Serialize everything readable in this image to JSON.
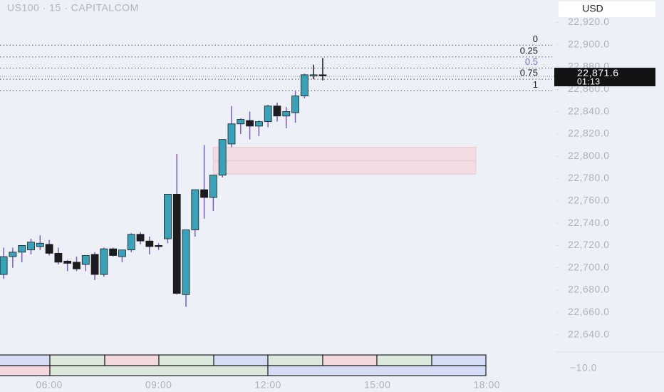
{
  "chart_data": {
    "type": "candlestick",
    "title": "US100 · 15 · CAPITALCOM",
    "currency": "USD",
    "x": [
      4.75,
      5,
      5.25,
      5.5,
      5.75,
      6,
      6.25,
      6.5,
      6.75,
      7,
      7.25,
      7.5,
      7.75,
      8,
      8.25,
      8.5,
      8.75,
      9,
      9.25,
      9.5,
      9.75,
      10,
      10.25,
      10.5,
      10.75,
      11,
      11.25,
      11.5,
      11.75,
      12,
      12.25,
      12.5,
      12.75,
      13,
      13.25,
      13.5
    ],
    "open": [
      22694,
      22710,
      22714,
      22716,
      22719,
      22721,
      22713,
      22706,
      22705,
      22703,
      22712,
      22694,
      22717,
      22710,
      22716,
      22730,
      22724,
      22720,
      22726,
      22766,
      22676,
      22734,
      22770,
      22763,
      22783,
      22811,
      22829,
      22832,
      22827,
      22831,
      22845,
      22836,
      22839,
      22854,
      22872,
      22873
    ],
    "high": [
      22718,
      22718,
      22720,
      22726,
      22729,
      22725,
      22718,
      22707,
      22710,
      22711,
      22714,
      22718,
      22718,
      22716,
      22731,
      22732,
      22728,
      22722,
      22766,
      22802,
      22734,
      22770,
      22810,
      22783,
      22815,
      22845,
      22834,
      22840,
      22832,
      22846,
      22848,
      22844,
      22859,
      22874,
      22882,
      22888
    ],
    "low": [
      22690,
      22700,
      22705,
      22712,
      22716,
      22711,
      22703,
      22697,
      22697,
      22697,
      22689,
      22692,
      22710,
      22705,
      22714,
      22721,
      22712,
      22716,
      22722,
      22676,
      22665,
      22728,
      22744,
      22751,
      22781,
      22808,
      22820,
      22815,
      22818,
      22826,
      22831,
      22825,
      22830,
      22852,
      22869,
      22868
    ],
    "close": [
      22710,
      22714,
      22720,
      22723,
      22722,
      22713,
      22705,
      22704,
      22699,
      22711,
      22694,
      22717,
      22711,
      22716,
      22730,
      22724,
      22719,
      22719,
      22766,
      22677,
      22734,
      22770,
      22763,
      22783,
      22815,
      22829,
      22833,
      22827,
      22831,
      22845,
      22836,
      22840,
      22854,
      22873,
      22873,
      22872
    ],
    "up_color": "#38a3b8",
    "down_color": "#1d1d1f",
    "wick_color": "#7a5cc4",
    "xlim": [
      4.65,
      19.89
    ],
    "ylim": [
      22627,
      22940
    ],
    "xticks": [
      {
        "value": 6,
        "label": "06:00"
      },
      {
        "value": 9,
        "label": "09:00"
      },
      {
        "value": 12,
        "label": "12:00"
      },
      {
        "value": 15,
        "label": "15:00"
      },
      {
        "value": 18,
        "label": "18:00"
      }
    ],
    "yticks": [
      {
        "value": 22640,
        "label": "22,640.0"
      },
      {
        "value": 22660,
        "label": "22,660.0"
      },
      {
        "value": 22680,
        "label": "22,680.0"
      },
      {
        "value": 22700,
        "label": "22,700.0"
      },
      {
        "value": 22720,
        "label": "22,720.0"
      },
      {
        "value": 22740,
        "label": "22,740.0"
      },
      {
        "value": 22760,
        "label": "22,760.0"
      },
      {
        "value": 22780,
        "label": "22,780.0"
      },
      {
        "value": 22800,
        "label": "22,800.0"
      },
      {
        "value": 22820,
        "label": "22,820.0"
      },
      {
        "value": 22840,
        "label": "22,840.0"
      },
      {
        "value": 22860,
        "label": "22,860.0"
      },
      {
        "value": 22880,
        "label": "22,880.0"
      },
      {
        "value": 22900,
        "label": "22,900.0"
      },
      {
        "value": 22920,
        "label": "22,920.0"
      }
    ],
    "last_price": {
      "value": 22871.6,
      "label": "22,871.6"
    },
    "countdown": "01:13",
    "fib_levels": [
      {
        "label": "0",
        "price": 22899.5,
        "color": "#1d1d1f"
      },
      {
        "label": "0.25",
        "price": 22889,
        "color": "#1d1d1f"
      },
      {
        "label": "0.5",
        "price": 22879,
        "color": "#7a6fd0"
      },
      {
        "label": "0.75",
        "price": 22869,
        "color": "#1d1d1f"
      },
      {
        "label": "1",
        "price": 22858.6,
        "color": "#1d1d1f"
      }
    ],
    "zone": {
      "x": [
        10.5,
        17.7
      ],
      "y": [
        22784,
        22808
      ],
      "color": "#f3d4dc"
    },
    "lower_pane_tick": "−10.0"
  }
}
